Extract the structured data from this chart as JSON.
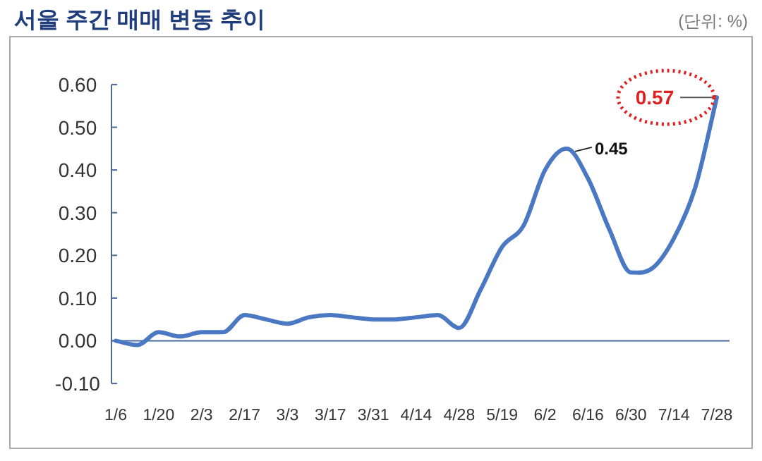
{
  "chart_data": {
    "type": "line",
    "title": "서울 주간 매매 변동 추이",
    "categories": [
      "1/6",
      null,
      "1/20",
      null,
      "2/3",
      null,
      "2/17",
      null,
      "3/3",
      null,
      "3/17",
      null,
      "3/31",
      null,
      "4/14",
      null,
      "4/28",
      null,
      "5/19",
      null,
      "6/2",
      null,
      "6/16",
      null,
      "6/30",
      null,
      "7/14",
      null,
      "7/28"
    ],
    "series": [
      {
        "color": "#4a78c2",
        "values": [
          0.0,
          -0.01,
          0.02,
          0.01,
          0.02,
          0.02,
          0.06,
          0.05,
          0.04,
          0.055,
          0.06,
          0.055,
          0.05,
          0.05,
          0.055,
          0.06,
          0.03,
          0.12,
          0.22,
          0.27,
          0.4,
          0.45,
          0.38,
          0.26,
          0.16,
          0.17,
          0.24,
          0.36,
          0.57
        ]
      }
    ],
    "ylim": [
      -0.1,
      0.6
    ],
    "yticks": [
      {
        "value": -0.1,
        "label": "-0.10"
      },
      {
        "value": 0,
        "label": "0.00"
      },
      {
        "value": 0.1,
        "label": "0.10"
      },
      {
        "value": 0.2,
        "label": "0.20"
      },
      {
        "value": 0.3,
        "label": "0.30"
      },
      {
        "value": 0.4,
        "label": "0.40"
      },
      {
        "value": 0.5,
        "label": "0.50"
      },
      {
        "value": 0.6,
        "label": "0.60"
      }
    ],
    "grid": false,
    "marker": "none",
    "line_style": "solid",
    "ref_lines": [
      {
        "axis": "y",
        "value": 0,
        "color": "#4a6a9a"
      }
    ],
    "annotations": [
      "(단위: %)",
      "0.45",
      {
        "text": "0.57",
        "x": "7/28",
        "y": 0.57
      }
    ]
  }
}
